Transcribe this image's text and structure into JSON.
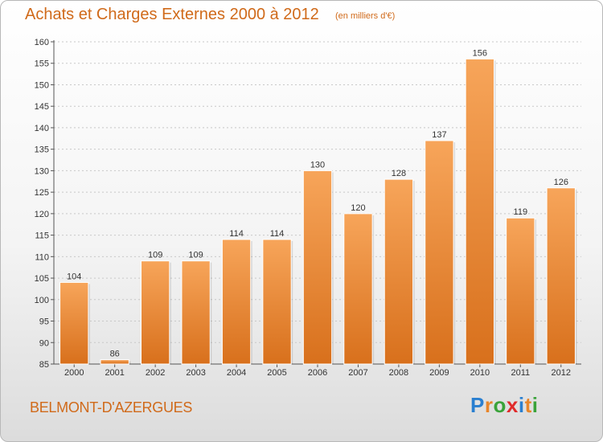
{
  "title": "Achats et Charges Externes 2000 à 2012",
  "unit": "(en milliers d'€)",
  "commune": "BELMONT-D'AZERGUES",
  "logo": {
    "letters": [
      {
        "ch": "P",
        "color": "#2a7fd0"
      },
      {
        "ch": "r",
        "color": "#e8862a"
      },
      {
        "ch": "o",
        "color": "#3aa33a"
      },
      {
        "ch": "x",
        "color": "#e02b2b"
      },
      {
        "ch": "i",
        "color": "#2a7fd0"
      },
      {
        "ch": "t",
        "color": "#e8862a"
      },
      {
        "ch": "i",
        "color": "#3aa33a"
      }
    ]
  },
  "chart_data": {
    "type": "bar",
    "categories": [
      "2000",
      "2001",
      "2002",
      "2003",
      "2004",
      "2005",
      "2006",
      "2007",
      "2008",
      "2009",
      "2010",
      "2011",
      "2012"
    ],
    "values": [
      104,
      86,
      109,
      109,
      114,
      114,
      130,
      120,
      128,
      137,
      156,
      119,
      126
    ],
    "value_labels": [
      "104",
      "86",
      "109",
      "109",
      "114",
      "114",
      "130",
      "120",
      "128",
      "137",
      "156",
      "119",
      "126"
    ],
    "yticks": [
      "85",
      "90",
      "95",
      "100",
      "105",
      "110",
      "115",
      "120",
      "125",
      "130",
      "135",
      "140",
      "145",
      "150",
      "155",
      "160"
    ],
    "ylim": [
      85,
      160
    ],
    "grid": true,
    "bar_color_top": "#f7a55a",
    "bar_color_bottom": "#d8701c"
  }
}
